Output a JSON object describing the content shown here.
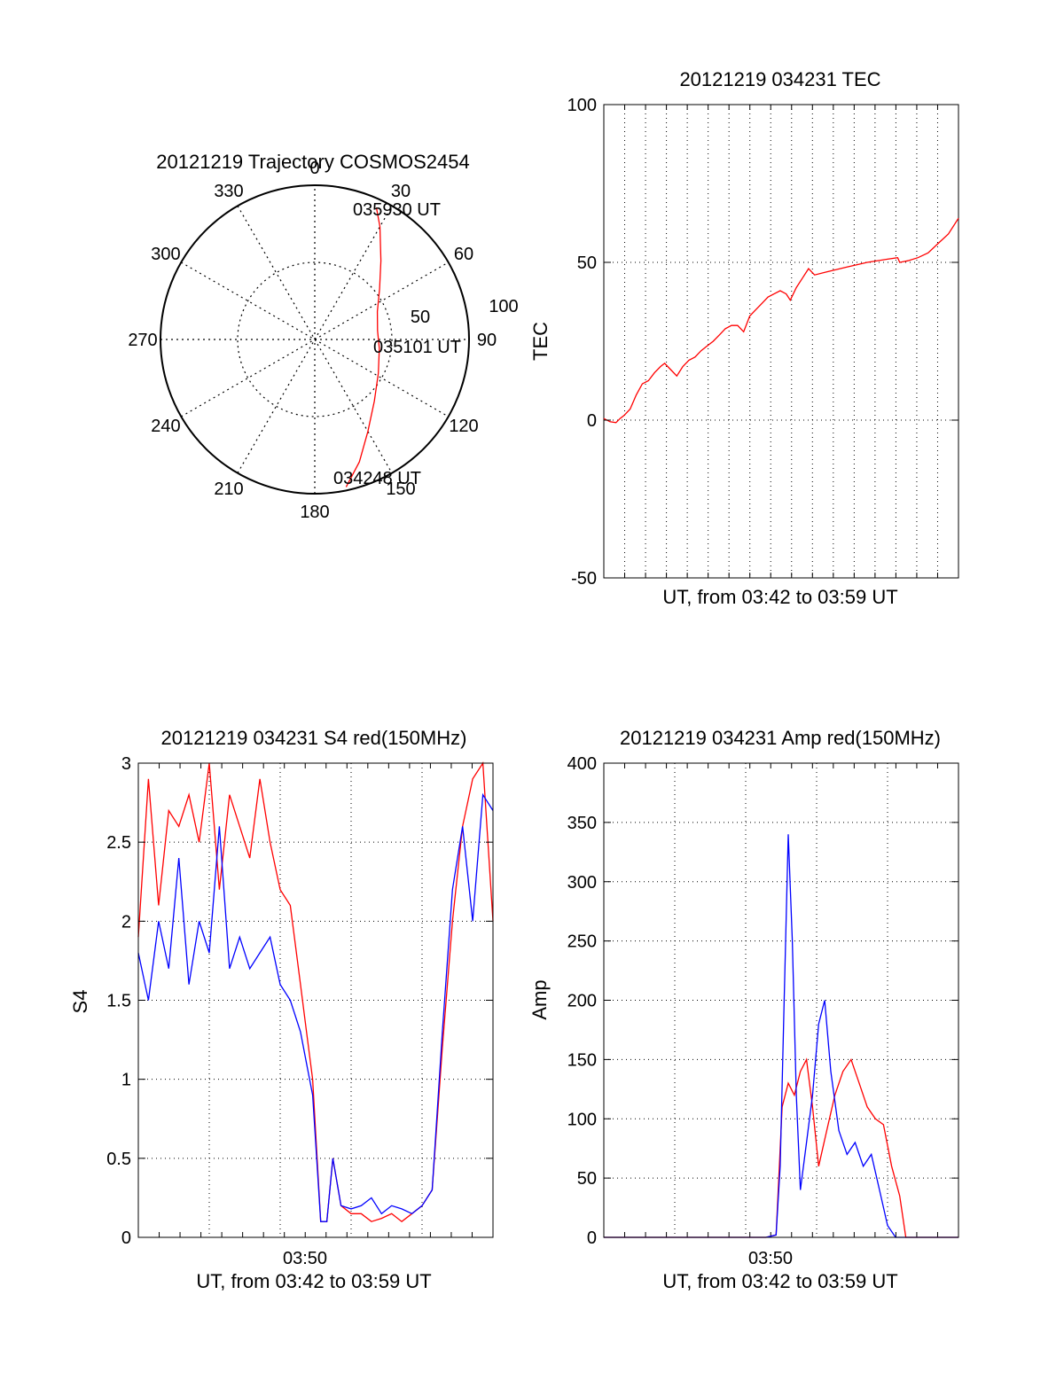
{
  "colors": {
    "red": "#ff0000",
    "blue": "#0000ff",
    "axis": "#000000",
    "grid": "#000000"
  },
  "chart_data": [
    {
      "id": "trajectory",
      "type": "polar",
      "title": "20121219 Trajectory COSMOS2454",
      "angle_labels": [
        "0",
        "30",
        "60",
        "90",
        "120",
        "150",
        "180",
        "210",
        "240",
        "270",
        "300",
        "330"
      ],
      "radius_labels": [
        "50",
        "100"
      ],
      "grid": true,
      "track": {
        "color": "#ff0000",
        "points": [
          {
            "az": 168,
            "el": 2
          },
          {
            "az": 160,
            "el": 14
          },
          {
            "az": 150,
            "el": 28
          },
          {
            "az": 136,
            "el": 40
          },
          {
            "az": 118,
            "el": 48
          },
          {
            "az": 98,
            "el": 52
          },
          {
            "az": 82,
            "el": 53
          },
          {
            "az": 66,
            "el": 50
          },
          {
            "az": 52,
            "el": 42
          },
          {
            "az": 40,
            "el": 30
          },
          {
            "az": 30,
            "el": 14
          },
          {
            "az": 25,
            "el": 5
          }
        ]
      },
      "annotations": [
        "035930 UT",
        "035101 UT",
        "034248 UT"
      ]
    },
    {
      "id": "tec",
      "type": "line",
      "title": "20121219 034231 TEC",
      "xlabel": "UT, from 03:42 to 03:59 UT",
      "ylabel": "TEC",
      "xlim": [
        0,
        17.5
      ],
      "ylim": [
        -50,
        100
      ],
      "yticks": [
        "-50",
        "0",
        "50",
        "100"
      ],
      "grid": true,
      "series": [
        {
          "color": "#ff0000",
          "x": [
            0.0,
            0.3,
            0.6,
            0.8,
            1.0,
            1.3,
            1.6,
            1.9,
            2.2,
            2.5,
            2.8,
            3.0,
            3.3,
            3.6,
            3.9,
            4.2,
            4.5,
            4.8,
            5.1,
            5.4,
            5.7,
            6.0,
            6.3,
            6.6,
            6.9,
            7.2,
            7.5,
            7.8,
            8.1,
            8.4,
            8.7,
            9.0,
            9.2,
            9.5,
            9.8,
            10.1,
            10.4,
            11.0,
            12.0,
            13.0,
            14.0,
            14.5,
            14.6,
            15.0,
            15.5,
            16.0,
            16.5,
            17.0,
            17.5
          ],
          "y": [
            0.5,
            -0.5,
            -0.8,
            0.5,
            1.5,
            3.5,
            8,
            11.5,
            12.5,
            15,
            17,
            18,
            16,
            14,
            17,
            19,
            20,
            22,
            23.5,
            25,
            27,
            29,
            30,
            30,
            28,
            33,
            35,
            37,
            39,
            40,
            41,
            40,
            38,
            42,
            45,
            48,
            46,
            47,
            48.5,
            50,
            51,
            51.5,
            50,
            50.5,
            51.5,
            53,
            56,
            59,
            64
          ]
        }
      ]
    },
    {
      "id": "s4",
      "type": "line",
      "title": "20121219 034231 S4 red(150MHz)",
      "xlabel": "UT, from 03:42 to 03:59 UT",
      "ylabel": "S4",
      "xlim": [
        0,
        17.5
      ],
      "ylim": [
        0,
        3
      ],
      "xtick_label": "03:50",
      "xtick_value": 8,
      "yticks": [
        "0",
        "0.5",
        "1",
        "1.5",
        "2",
        "2.5",
        "3"
      ],
      "grid": true,
      "series": [
        {
          "color": "#ff0000",
          "x": [
            0.0,
            0.5,
            1.0,
            1.5,
            2.0,
            2.5,
            3.0,
            3.5,
            4.0,
            4.5,
            5.0,
            5.5,
            6.0,
            6.5,
            7.0,
            7.5,
            8.0,
            8.3,
            8.6,
            9.0,
            9.3,
            9.6,
            10.0,
            10.5,
            11.0,
            11.5,
            12.0,
            12.5,
            13.0,
            13.5,
            14.0,
            14.5,
            15.0,
            15.5,
            16.0,
            16.5,
            17.0,
            17.5
          ],
          "y": [
            1.9,
            2.9,
            2.1,
            2.7,
            2.6,
            2.8,
            2.5,
            3.0,
            2.2,
            2.8,
            2.6,
            2.4,
            2.9,
            2.5,
            2.2,
            2.1,
            1.6,
            1.3,
            1.0,
            0.1,
            0.1,
            0.5,
            0.2,
            0.15,
            0.15,
            0.1,
            0.12,
            0.15,
            0.1,
            0.15,
            0.2,
            0.3,
            1.2,
            2.0,
            2.6,
            2.9,
            3.0,
            2.0
          ]
        },
        {
          "color": "#0000ff",
          "x": [
            0.0,
            0.5,
            1.0,
            1.5,
            2.0,
            2.5,
            3.0,
            3.5,
            4.0,
            4.5,
            5.0,
            5.5,
            6.0,
            6.5,
            7.0,
            7.5,
            8.0,
            8.3,
            8.6,
            9.0,
            9.3,
            9.6,
            10.0,
            10.5,
            11.0,
            11.5,
            12.0,
            12.5,
            13.0,
            13.5,
            14.0,
            14.5,
            15.0,
            15.5,
            16.0,
            16.5,
            17.0,
            17.5
          ],
          "y": [
            1.8,
            1.5,
            2.0,
            1.7,
            2.4,
            1.6,
            2.0,
            1.8,
            2.6,
            1.7,
            1.9,
            1.7,
            1.8,
            1.9,
            1.6,
            1.5,
            1.3,
            1.1,
            0.9,
            0.1,
            0.1,
            0.5,
            0.2,
            0.18,
            0.2,
            0.25,
            0.15,
            0.2,
            0.18,
            0.15,
            0.2,
            0.3,
            1.3,
            2.2,
            2.6,
            2.0,
            2.8,
            2.7
          ]
        }
      ]
    },
    {
      "id": "amp",
      "type": "line",
      "title": "20121219 034231 Amp red(150MHz)",
      "xlabel": "UT, from 03:42 to 03:59 UT",
      "ylabel": "Amp",
      "xlim": [
        0,
        17.5
      ],
      "ylim": [
        0,
        400
      ],
      "xtick_label": "03:50",
      "xtick_value": 8,
      "yticks": [
        "0",
        "50",
        "100",
        "150",
        "200",
        "250",
        "300",
        "350",
        "400"
      ],
      "grid": true,
      "series": [
        {
          "color": "#ff0000",
          "x": [
            0.0,
            8.0,
            8.5,
            8.8,
            9.1,
            9.4,
            9.7,
            10.0,
            10.3,
            10.6,
            11.0,
            11.4,
            11.8,
            12.2,
            12.6,
            13.0,
            13.4,
            13.8,
            14.2,
            14.6,
            14.9,
            17.5
          ],
          "y": [
            0,
            0,
            2,
            110,
            130,
            120,
            140,
            150,
            110,
            60,
            90,
            120,
            140,
            150,
            130,
            110,
            100,
            95,
            60,
            35,
            0,
            0
          ]
        },
        {
          "color": "#0000ff",
          "x": [
            0.0,
            8.0,
            8.5,
            8.7,
            8.9,
            9.1,
            9.3,
            9.5,
            9.7,
            10.0,
            10.3,
            10.6,
            10.9,
            11.2,
            11.6,
            12.0,
            12.4,
            12.8,
            13.2,
            13.6,
            14.0,
            14.4,
            17.5
          ],
          "y": [
            0,
            0,
            2,
            60,
            200,
            340,
            250,
            120,
            40,
            80,
            120,
            180,
            200,
            140,
            90,
            70,
            80,
            60,
            70,
            40,
            10,
            0,
            0
          ]
        }
      ]
    }
  ]
}
